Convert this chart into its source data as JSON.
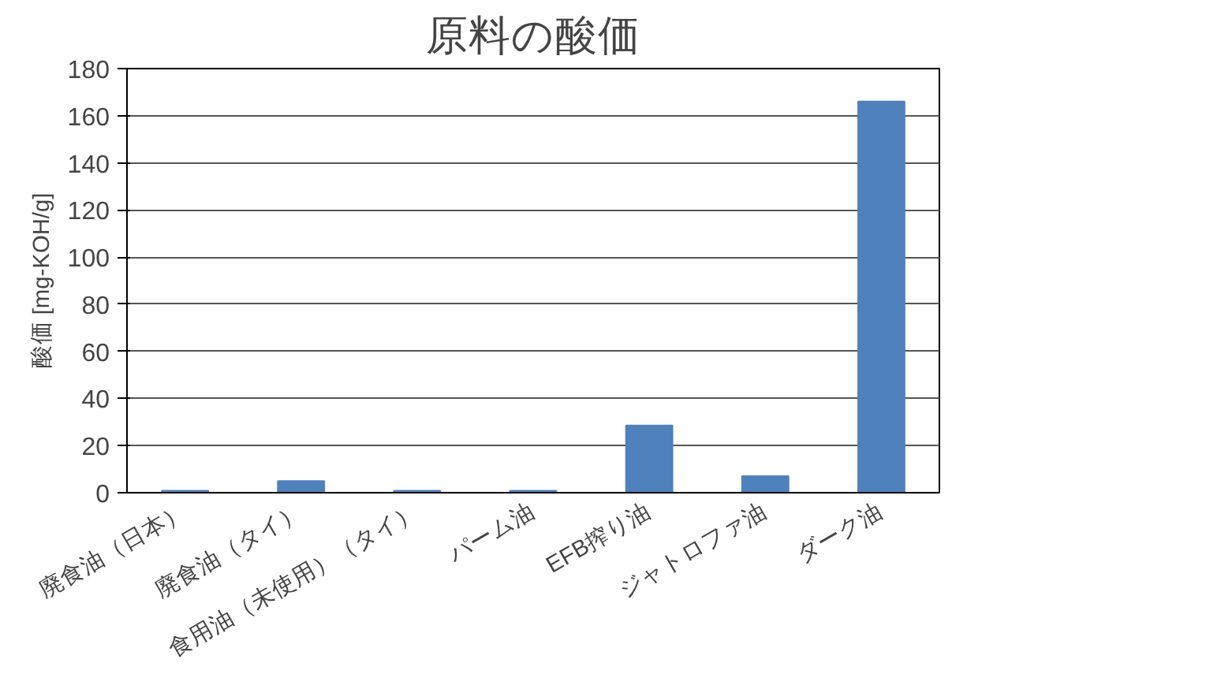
{
  "chart_data": {
    "type": "bar",
    "title": "原料の酸価",
    "ylabel": "酸価 [mg-KOH/g]",
    "categories": [
      "廃食油（日本）",
      "廃食油（タイ）",
      "食用油（未使用）（タイ）",
      "パーム油",
      "EFB搾り油",
      "ジャトロファ油",
      "ダーク油"
    ],
    "values": [
      0.8,
      4.9,
      0.8,
      0.8,
      28.5,
      7,
      166
    ],
    "color": "#4f81bd",
    "ylim": [
      0,
      180
    ],
    "yticks": [
      0,
      20,
      40,
      60,
      80,
      100,
      120,
      140,
      160,
      180
    ],
    "grid": "y"
  }
}
